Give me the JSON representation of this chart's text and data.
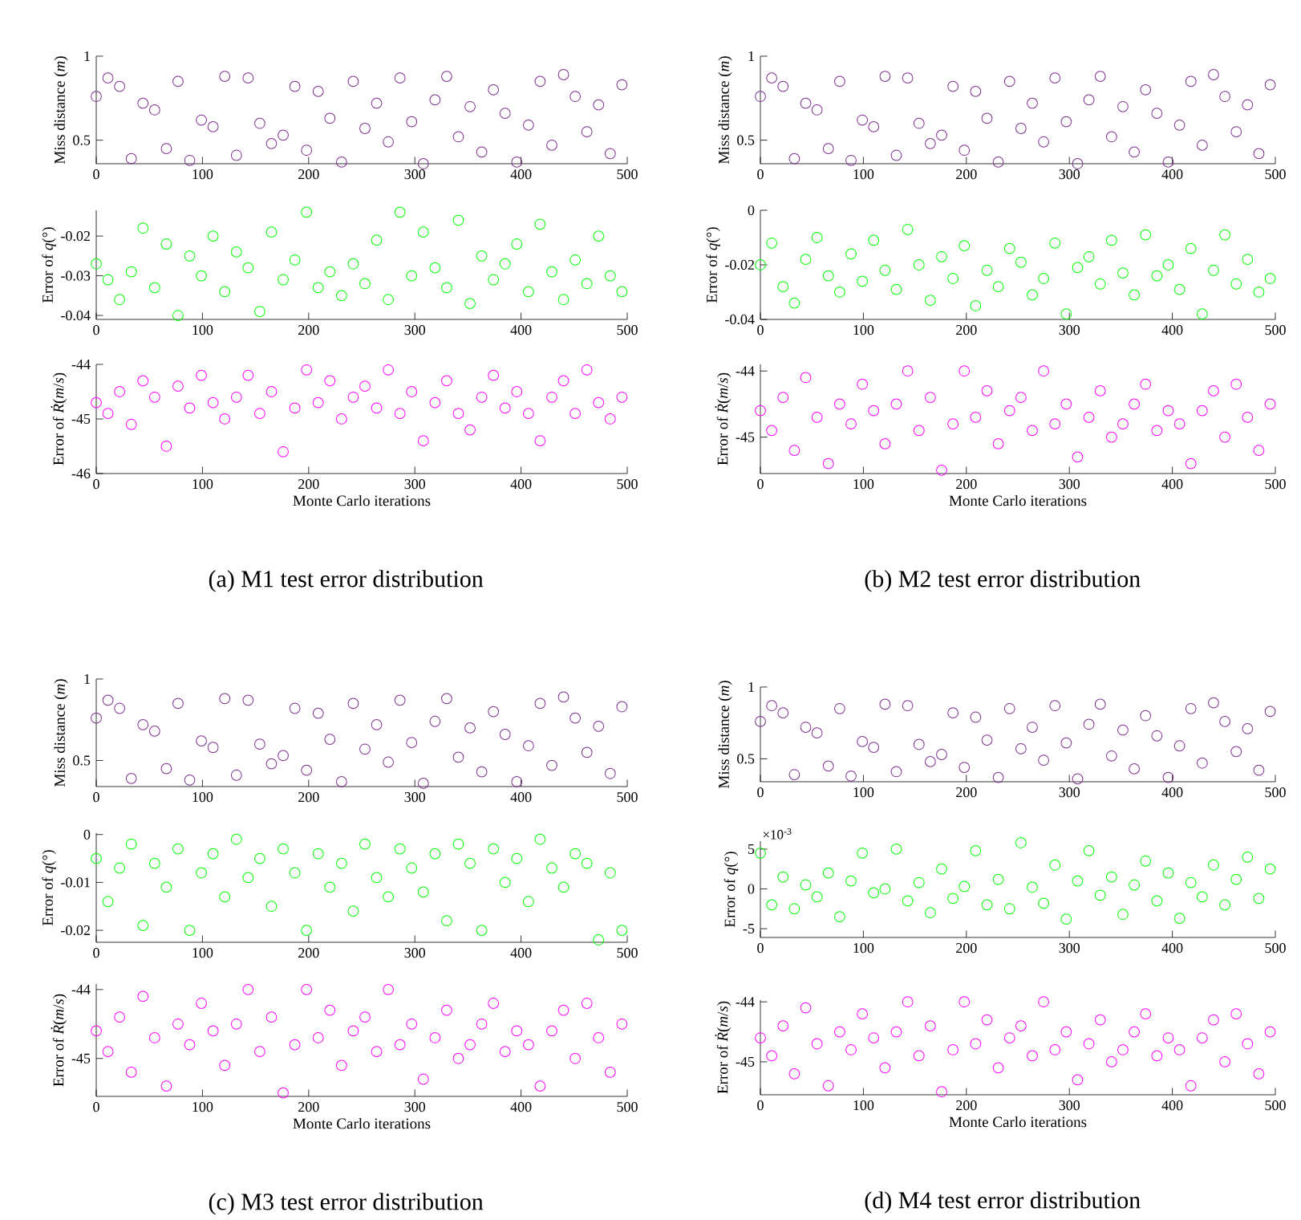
{
  "chart_data": [
    {
      "type": "scatter",
      "ylabel": "Miss distance (*m*)",
      "color": "#7e2f8e",
      "marker": "circle",
      "xlim": [
        0,
        500
      ],
      "xticks": [
        0,
        100,
        200,
        300,
        400,
        500
      ],
      "ylim": [
        0.36,
        1
      ],
      "yticks": [
        0.5,
        1
      ],
      "x": [
        0,
        11,
        22,
        33,
        44,
        55,
        66,
        77,
        88,
        99,
        110,
        121,
        132,
        143,
        154,
        165,
        176,
        187,
        198,
        209,
        220,
        231,
        242,
        253,
        264,
        275,
        286,
        297,
        308,
        319,
        330,
        341,
        352,
        363,
        374,
        385,
        396,
        407,
        418,
        429,
        440,
        451,
        462,
        473,
        484,
        495
      ],
      "values": [
        0.76,
        0.87,
        0.82,
        0.39,
        0.72,
        0.68,
        0.45,
        0.85,
        0.38,
        0.62,
        0.58,
        0.88,
        0.41,
        0.87,
        0.6,
        0.48,
        0.53,
        0.82,
        0.44,
        0.79,
        0.63,
        0.37,
        0.85,
        0.57,
        0.72,
        0.49,
        0.87,
        0.61,
        0.36,
        0.74,
        0.88,
        0.52,
        0.7,
        0.43,
        0.8,
        0.66,
        0.37,
        0.59,
        0.85,
        0.47,
        0.89,
        0.76,
        0.55,
        0.71,
        0.42,
        0.83
      ]
    },
    {
      "type": "scatter",
      "ylabel": "Error of *q*(°)",
      "color": "#00ff00",
      "marker": "circle",
      "xlim": [
        0,
        500
      ],
      "xticks": [
        0,
        100,
        200,
        300,
        400,
        500
      ],
      "ylim": [
        -0.041,
        -0.0135
      ],
      "yticks": [
        -0.04,
        -0.03,
        -0.02
      ],
      "x": [
        0,
        11,
        22,
        33,
        44,
        55,
        66,
        77,
        88,
        99,
        110,
        121,
        132,
        143,
        154,
        165,
        176,
        187,
        198,
        209,
        220,
        231,
        242,
        253,
        264,
        275,
        286,
        297,
        308,
        319,
        330,
        341,
        352,
        363,
        374,
        385,
        396,
        407,
        418,
        429,
        440,
        451,
        462,
        473,
        484,
        495
      ],
      "values": [
        -0.027,
        -0.031,
        -0.036,
        -0.029,
        -0.018,
        -0.033,
        -0.022,
        -0.04,
        -0.025,
        -0.03,
        -0.02,
        -0.034,
        -0.024,
        -0.028,
        -0.039,
        -0.019,
        -0.031,
        -0.026,
        -0.014,
        -0.033,
        -0.029,
        -0.035,
        -0.027,
        -0.032,
        -0.021,
        -0.036,
        -0.014,
        -0.03,
        -0.019,
        -0.028,
        -0.033,
        -0.016,
        -0.037,
        -0.025,
        -0.031,
        -0.027,
        -0.022,
        -0.034,
        -0.017,
        -0.029,
        -0.036,
        -0.026,
        -0.032,
        -0.02,
        -0.03,
        -0.034
      ]
    },
    {
      "type": "scatter",
      "ylabel": "Error of *Ṙ*(*m*/*s*)",
      "xlabel": "Monte Carlo iterations",
      "annotations": [
        "(a)  M1 test error distribution"
      ],
      "color": "#ff00ff",
      "marker": "circle",
      "xlim": [
        0,
        500
      ],
      "xticks": [
        0,
        100,
        200,
        300,
        400,
        500
      ],
      "ylim": [
        -46,
        -44
      ],
      "yticks": [
        -46,
        -45,
        -44
      ],
      "x": [
        0,
        11,
        22,
        33,
        44,
        55,
        66,
        77,
        88,
        99,
        110,
        121,
        132,
        143,
        154,
        165,
        176,
        187,
        198,
        209,
        220,
        231,
        242,
        253,
        264,
        275,
        286,
        297,
        308,
        319,
        330,
        341,
        352,
        363,
        374,
        385,
        396,
        407,
        418,
        429,
        440,
        451,
        462,
        473,
        484,
        495
      ],
      "values": [
        -44.7,
        -44.9,
        -44.5,
        -45.1,
        -44.3,
        -44.6,
        -45.5,
        -44.4,
        -44.8,
        -44.2,
        -44.7,
        -45.0,
        -44.6,
        -44.2,
        -44.9,
        -44.5,
        -45.6,
        -44.8,
        -44.1,
        -44.7,
        -44.3,
        -45.0,
        -44.6,
        -44.4,
        -44.8,
        -44.1,
        -44.9,
        -44.5,
        -45.4,
        -44.7,
        -44.3,
        -44.9,
        -45.2,
        -44.6,
        -44.2,
        -44.8,
        -44.5,
        -44.9,
        -45.4,
        -44.6,
        -44.3,
        -44.9,
        -44.1,
        -44.7,
        -45.0,
        -44.6
      ]
    },
    {
      "type": "scatter",
      "ylabel": "Miss distance (*m*)",
      "color": "#7e2f8e",
      "marker": "circle",
      "xlim": [
        0,
        500
      ],
      "xticks": [
        0,
        100,
        200,
        300,
        400,
        500
      ],
      "ylim": [
        0.36,
        1
      ],
      "yticks": [
        0.5,
        1
      ],
      "x": [
        0,
        11,
        22,
        33,
        44,
        55,
        66,
        77,
        88,
        99,
        110,
        121,
        132,
        143,
        154,
        165,
        176,
        187,
        198,
        209,
        220,
        231,
        242,
        253,
        264,
        275,
        286,
        297,
        308,
        319,
        330,
        341,
        352,
        363,
        374,
        385,
        396,
        407,
        418,
        429,
        440,
        451,
        462,
        473,
        484,
        495
      ],
      "values": [
        0.76,
        0.87,
        0.82,
        0.39,
        0.72,
        0.68,
        0.45,
        0.85,
        0.38,
        0.62,
        0.58,
        0.88,
        0.41,
        0.87,
        0.6,
        0.48,
        0.53,
        0.82,
        0.44,
        0.79,
        0.63,
        0.37,
        0.85,
        0.57,
        0.72,
        0.49,
        0.87,
        0.61,
        0.36,
        0.74,
        0.88,
        0.52,
        0.7,
        0.43,
        0.8,
        0.66,
        0.37,
        0.59,
        0.85,
        0.47,
        0.89,
        0.76,
        0.55,
        0.71,
        0.42,
        0.83
      ]
    },
    {
      "type": "scatter",
      "ylabel": "Error of *q*(°)",
      "color": "#00ff00",
      "marker": "circle",
      "xlim": [
        0,
        500
      ],
      "xticks": [
        0,
        100,
        200,
        300,
        400,
        500
      ],
      "ylim": [
        -0.04,
        0
      ],
      "yticks": [
        -0.04,
        -0.02,
        0
      ],
      "x": [
        0,
        11,
        22,
        33,
        44,
        55,
        66,
        77,
        88,
        99,
        110,
        121,
        132,
        143,
        154,
        165,
        176,
        187,
        198,
        209,
        220,
        231,
        242,
        253,
        264,
        275,
        286,
        297,
        308,
        319,
        330,
        341,
        352,
        363,
        374,
        385,
        396,
        407,
        418,
        429,
        440,
        451,
        462,
        473,
        484,
        495
      ],
      "values": [
        -0.02,
        -0.012,
        -0.028,
        -0.034,
        -0.018,
        -0.01,
        -0.024,
        -0.03,
        -0.016,
        -0.026,
        -0.011,
        -0.022,
        -0.029,
        -0.007,
        -0.02,
        -0.033,
        -0.017,
        -0.025,
        -0.013,
        -0.035,
        -0.022,
        -0.028,
        -0.014,
        -0.019,
        -0.031,
        -0.025,
        -0.012,
        -0.038,
        -0.021,
        -0.017,
        -0.027,
        -0.011,
        -0.023,
        -0.031,
        -0.009,
        -0.024,
        -0.02,
        -0.029,
        -0.014,
        -0.038,
        -0.022,
        -0.009,
        -0.027,
        -0.018,
        -0.03,
        -0.025
      ]
    },
    {
      "type": "scatter",
      "ylabel": "Error of *Ṙ*(*m*/*s*)",
      "xlabel": "Monte Carlo iterations",
      "annotations": [
        "(b)  M2 test error distribution"
      ],
      "color": "#ff00ff",
      "marker": "circle",
      "xlim": [
        0,
        500
      ],
      "xticks": [
        0,
        100,
        200,
        300,
        400,
        500
      ],
      "ylim": [
        -45.55,
        -43.9
      ],
      "yticks": [
        -45,
        -44
      ],
      "x": [
        0,
        11,
        22,
        33,
        44,
        55,
        66,
        77,
        88,
        99,
        110,
        121,
        132,
        143,
        154,
        165,
        176,
        187,
        198,
        209,
        220,
        231,
        242,
        253,
        264,
        275,
        286,
        297,
        308,
        319,
        330,
        341,
        352,
        363,
        374,
        385,
        396,
        407,
        418,
        429,
        440,
        451,
        462,
        473,
        484,
        495
      ],
      "values": [
        -44.6,
        -44.9,
        -44.4,
        -45.2,
        -44.1,
        -44.7,
        -45.4,
        -44.5,
        -44.8,
        -44.2,
        -44.6,
        -45.1,
        -44.5,
        -44.0,
        -44.9,
        -44.4,
        -45.5,
        -44.8,
        -44.0,
        -44.7,
        -44.3,
        -45.1,
        -44.6,
        -44.4,
        -44.9,
        -44.0,
        -44.8,
        -44.5,
        -45.3,
        -44.7,
        -44.3,
        -45.0,
        -44.8,
        -44.5,
        -44.2,
        -44.9,
        -44.6,
        -44.8,
        -45.4,
        -44.6,
        -44.3,
        -45.0,
        -44.2,
        -44.7,
        -45.2,
        -44.5
      ]
    },
    {
      "type": "scatter",
      "ylabel": "Miss distance (*m*)",
      "color": "#7e2f8e",
      "marker": "circle",
      "xlim": [
        0,
        500
      ],
      "xticks": [
        0,
        100,
        200,
        300,
        400,
        500
      ],
      "ylim": [
        0.34,
        1
      ],
      "yticks": [
        0.5,
        1
      ],
      "x": [
        0,
        11,
        22,
        33,
        44,
        55,
        66,
        77,
        88,
        99,
        110,
        121,
        132,
        143,
        154,
        165,
        176,
        187,
        198,
        209,
        220,
        231,
        242,
        253,
        264,
        275,
        286,
        297,
        308,
        319,
        330,
        341,
        352,
        363,
        374,
        385,
        396,
        407,
        418,
        429,
        440,
        451,
        462,
        473,
        484,
        495
      ],
      "values": [
        0.76,
        0.87,
        0.82,
        0.39,
        0.72,
        0.68,
        0.45,
        0.85,
        0.38,
        0.62,
        0.58,
        0.88,
        0.41,
        0.87,
        0.6,
        0.48,
        0.53,
        0.82,
        0.44,
        0.79,
        0.63,
        0.37,
        0.85,
        0.57,
        0.72,
        0.49,
        0.87,
        0.61,
        0.36,
        0.74,
        0.88,
        0.52,
        0.7,
        0.43,
        0.8,
        0.66,
        0.37,
        0.59,
        0.85,
        0.47,
        0.89,
        0.76,
        0.55,
        0.71,
        0.42,
        0.83
      ]
    },
    {
      "type": "scatter",
      "ylabel": "Error of *q*(°)",
      "color": "#00ff00",
      "marker": "circle",
      "xlim": [
        0,
        500
      ],
      "xticks": [
        0,
        100,
        200,
        300,
        400,
        500
      ],
      "ylim": [
        -0.0225,
        0.0003
      ],
      "yticks": [
        -0.02,
        -0.01,
        0
      ],
      "x": [
        0,
        11,
        22,
        33,
        44,
        55,
        66,
        77,
        88,
        99,
        110,
        121,
        132,
        143,
        154,
        165,
        176,
        187,
        198,
        209,
        220,
        231,
        242,
        253,
        264,
        275,
        286,
        297,
        308,
        319,
        330,
        341,
        352,
        363,
        374,
        385,
        396,
        407,
        418,
        429,
        440,
        451,
        462,
        473,
        484,
        495
      ],
      "values": [
        -0.005,
        -0.014,
        -0.007,
        -0.002,
        -0.019,
        -0.006,
        -0.011,
        -0.003,
        -0.02,
        -0.008,
        -0.004,
        -0.013,
        -0.001,
        -0.009,
        -0.005,
        -0.015,
        -0.003,
        -0.008,
        -0.02,
        -0.004,
        -0.011,
        -0.006,
        -0.016,
        -0.002,
        -0.009,
        -0.013,
        -0.003,
        -0.007,
        -0.012,
        -0.004,
        -0.018,
        -0.002,
        -0.006,
        -0.02,
        -0.003,
        -0.01,
        -0.005,
        -0.014,
        -0.001,
        -0.007,
        -0.011,
        -0.004,
        -0.006,
        -0.022,
        -0.008,
        -0.02
      ]
    },
    {
      "type": "scatter",
      "ylabel": "Error of *Ṙ*(*m*/*s*)",
      "xlabel": "Monte Carlo iterations",
      "annotations": [
        "(c)  M3 test error distribution"
      ],
      "color": "#ff00ff",
      "marker": "circle",
      "xlim": [
        0,
        500
      ],
      "xticks": [
        0,
        100,
        200,
        300,
        400,
        500
      ],
      "ylim": [
        -45.55,
        -43.92
      ],
      "yticks": [
        -45,
        -44
      ],
      "x": [
        0,
        11,
        22,
        33,
        44,
        55,
        66,
        77,
        88,
        99,
        110,
        121,
        132,
        143,
        154,
        165,
        176,
        187,
        198,
        209,
        220,
        231,
        242,
        253,
        264,
        275,
        286,
        297,
        308,
        319,
        330,
        341,
        352,
        363,
        374,
        385,
        396,
        407,
        418,
        429,
        440,
        451,
        462,
        473,
        484,
        495
      ],
      "values": [
        -44.6,
        -44.9,
        -44.4,
        -45.2,
        -44.1,
        -44.7,
        -45.4,
        -44.5,
        -44.8,
        -44.2,
        -44.6,
        -45.1,
        -44.5,
        -44.0,
        -44.9,
        -44.4,
        -45.5,
        -44.8,
        -44.0,
        -44.7,
        -44.3,
        -45.1,
        -44.6,
        -44.4,
        -44.9,
        -44.0,
        -44.8,
        -44.5,
        -45.3,
        -44.7,
        -44.3,
        -45.0,
        -44.8,
        -44.5,
        -44.2,
        -44.9,
        -44.6,
        -44.8,
        -45.4,
        -44.6,
        -44.3,
        -45.0,
        -44.2,
        -44.7,
        -45.2,
        -44.5
      ]
    },
    {
      "type": "scatter",
      "ylabel": "Miss distance (*m*)",
      "color": "#7e2f8e",
      "marker": "circle",
      "xlim": [
        0,
        500
      ],
      "xticks": [
        0,
        100,
        200,
        300,
        400,
        500
      ],
      "ylim": [
        0.34,
        1
      ],
      "yticks": [
        0.5,
        1
      ],
      "x": [
        0,
        11,
        22,
        33,
        44,
        55,
        66,
        77,
        88,
        99,
        110,
        121,
        132,
        143,
        154,
        165,
        176,
        187,
        198,
        209,
        220,
        231,
        242,
        253,
        264,
        275,
        286,
        297,
        308,
        319,
        330,
        341,
        352,
        363,
        374,
        385,
        396,
        407,
        418,
        429,
        440,
        451,
        462,
        473,
        484,
        495
      ],
      "values": [
        0.76,
        0.87,
        0.82,
        0.39,
        0.72,
        0.68,
        0.45,
        0.85,
        0.38,
        0.62,
        0.58,
        0.88,
        0.41,
        0.87,
        0.6,
        0.48,
        0.53,
        0.82,
        0.44,
        0.79,
        0.63,
        0.37,
        0.85,
        0.57,
        0.72,
        0.49,
        0.87,
        0.61,
        0.36,
        0.74,
        0.88,
        0.52,
        0.7,
        0.43,
        0.8,
        0.66,
        0.37,
        0.59,
        0.85,
        0.47,
        0.89,
        0.76,
        0.55,
        0.71,
        0.42,
        0.83
      ]
    },
    {
      "type": "scatter",
      "ylabel": "Error of *q*(°)",
      "annotations": [
        "×10$^{-3}$"
      ],
      "color": "#00ff00",
      "marker": "circle",
      "xlim": [
        0,
        500
      ],
      "xticks": [
        0,
        100,
        200,
        300,
        400,
        500
      ],
      "ylim": [
        -6.1,
        6
      ],
      "yticks": [
        -5,
        0,
        5
      ],
      "x": [
        0,
        11,
        22,
        33,
        44,
        55,
        66,
        77,
        88,
        99,
        110,
        121,
        132,
        143,
        154,
        165,
        176,
        187,
        198,
        209,
        220,
        231,
        242,
        253,
        264,
        275,
        286,
        297,
        308,
        319,
        330,
        341,
        352,
        363,
        374,
        385,
        396,
        407,
        418,
        429,
        440,
        451,
        462,
        473,
        484,
        495
      ],
      "values": [
        4.5,
        -2.0,
        1.5,
        -2.5,
        0.5,
        -1.0,
        2.0,
        -3.5,
        1.0,
        4.5,
        -0.5,
        0.0,
        5.0,
        -1.5,
        0.8,
        -3.0,
        2.5,
        -1.2,
        0.3,
        4.8,
        -2.0,
        1.2,
        -2.5,
        5.8,
        0.2,
        -1.8,
        3.0,
        -3.8,
        1.0,
        4.8,
        -0.8,
        1.5,
        -3.2,
        0.5,
        3.5,
        -1.5,
        2.0,
        -3.7,
        0.8,
        -1.0,
        3.0,
        -2.0,
        1.2,
        4.0,
        -1.2,
        2.5
      ]
    },
    {
      "type": "scatter",
      "ylabel": "Error of *Ṙ*(*m*/*s*)",
      "xlabel": "Monte Carlo iterations",
      "annotations": [
        "(d)  M4 test error distribution"
      ],
      "color": "#ff00ff",
      "marker": "circle",
      "xlim": [
        0,
        500
      ],
      "xticks": [
        0,
        100,
        200,
        300,
        400,
        500
      ],
      "ylim": [
        -45.55,
        -43.97
      ],
      "yticks": [
        -45,
        -44
      ],
      "x": [
        0,
        11,
        22,
        33,
        44,
        55,
        66,
        77,
        88,
        99,
        110,
        121,
        132,
        143,
        154,
        165,
        176,
        187,
        198,
        209,
        220,
        231,
        242,
        253,
        264,
        275,
        286,
        297,
        308,
        319,
        330,
        341,
        352,
        363,
        374,
        385,
        396,
        407,
        418,
        429,
        440,
        451,
        462,
        473,
        484,
        495
      ],
      "values": [
        -44.6,
        -44.9,
        -44.4,
        -45.2,
        -44.1,
        -44.7,
        -45.4,
        -44.5,
        -44.8,
        -44.2,
        -44.6,
        -45.1,
        -44.5,
        -44.0,
        -44.9,
        -44.4,
        -45.5,
        -44.8,
        -44.0,
        -44.7,
        -44.3,
        -45.1,
        -44.6,
        -44.4,
        -44.9,
        -44.0,
        -44.8,
        -44.5,
        -45.3,
        -44.7,
        -44.3,
        -45.0,
        -44.8,
        -44.5,
        -44.2,
        -44.9,
        -44.6,
        -44.8,
        -45.4,
        -44.6,
        -44.3,
        -45.0,
        -44.2,
        -44.7,
        -45.2,
        -44.5
      ]
    }
  ]
}
